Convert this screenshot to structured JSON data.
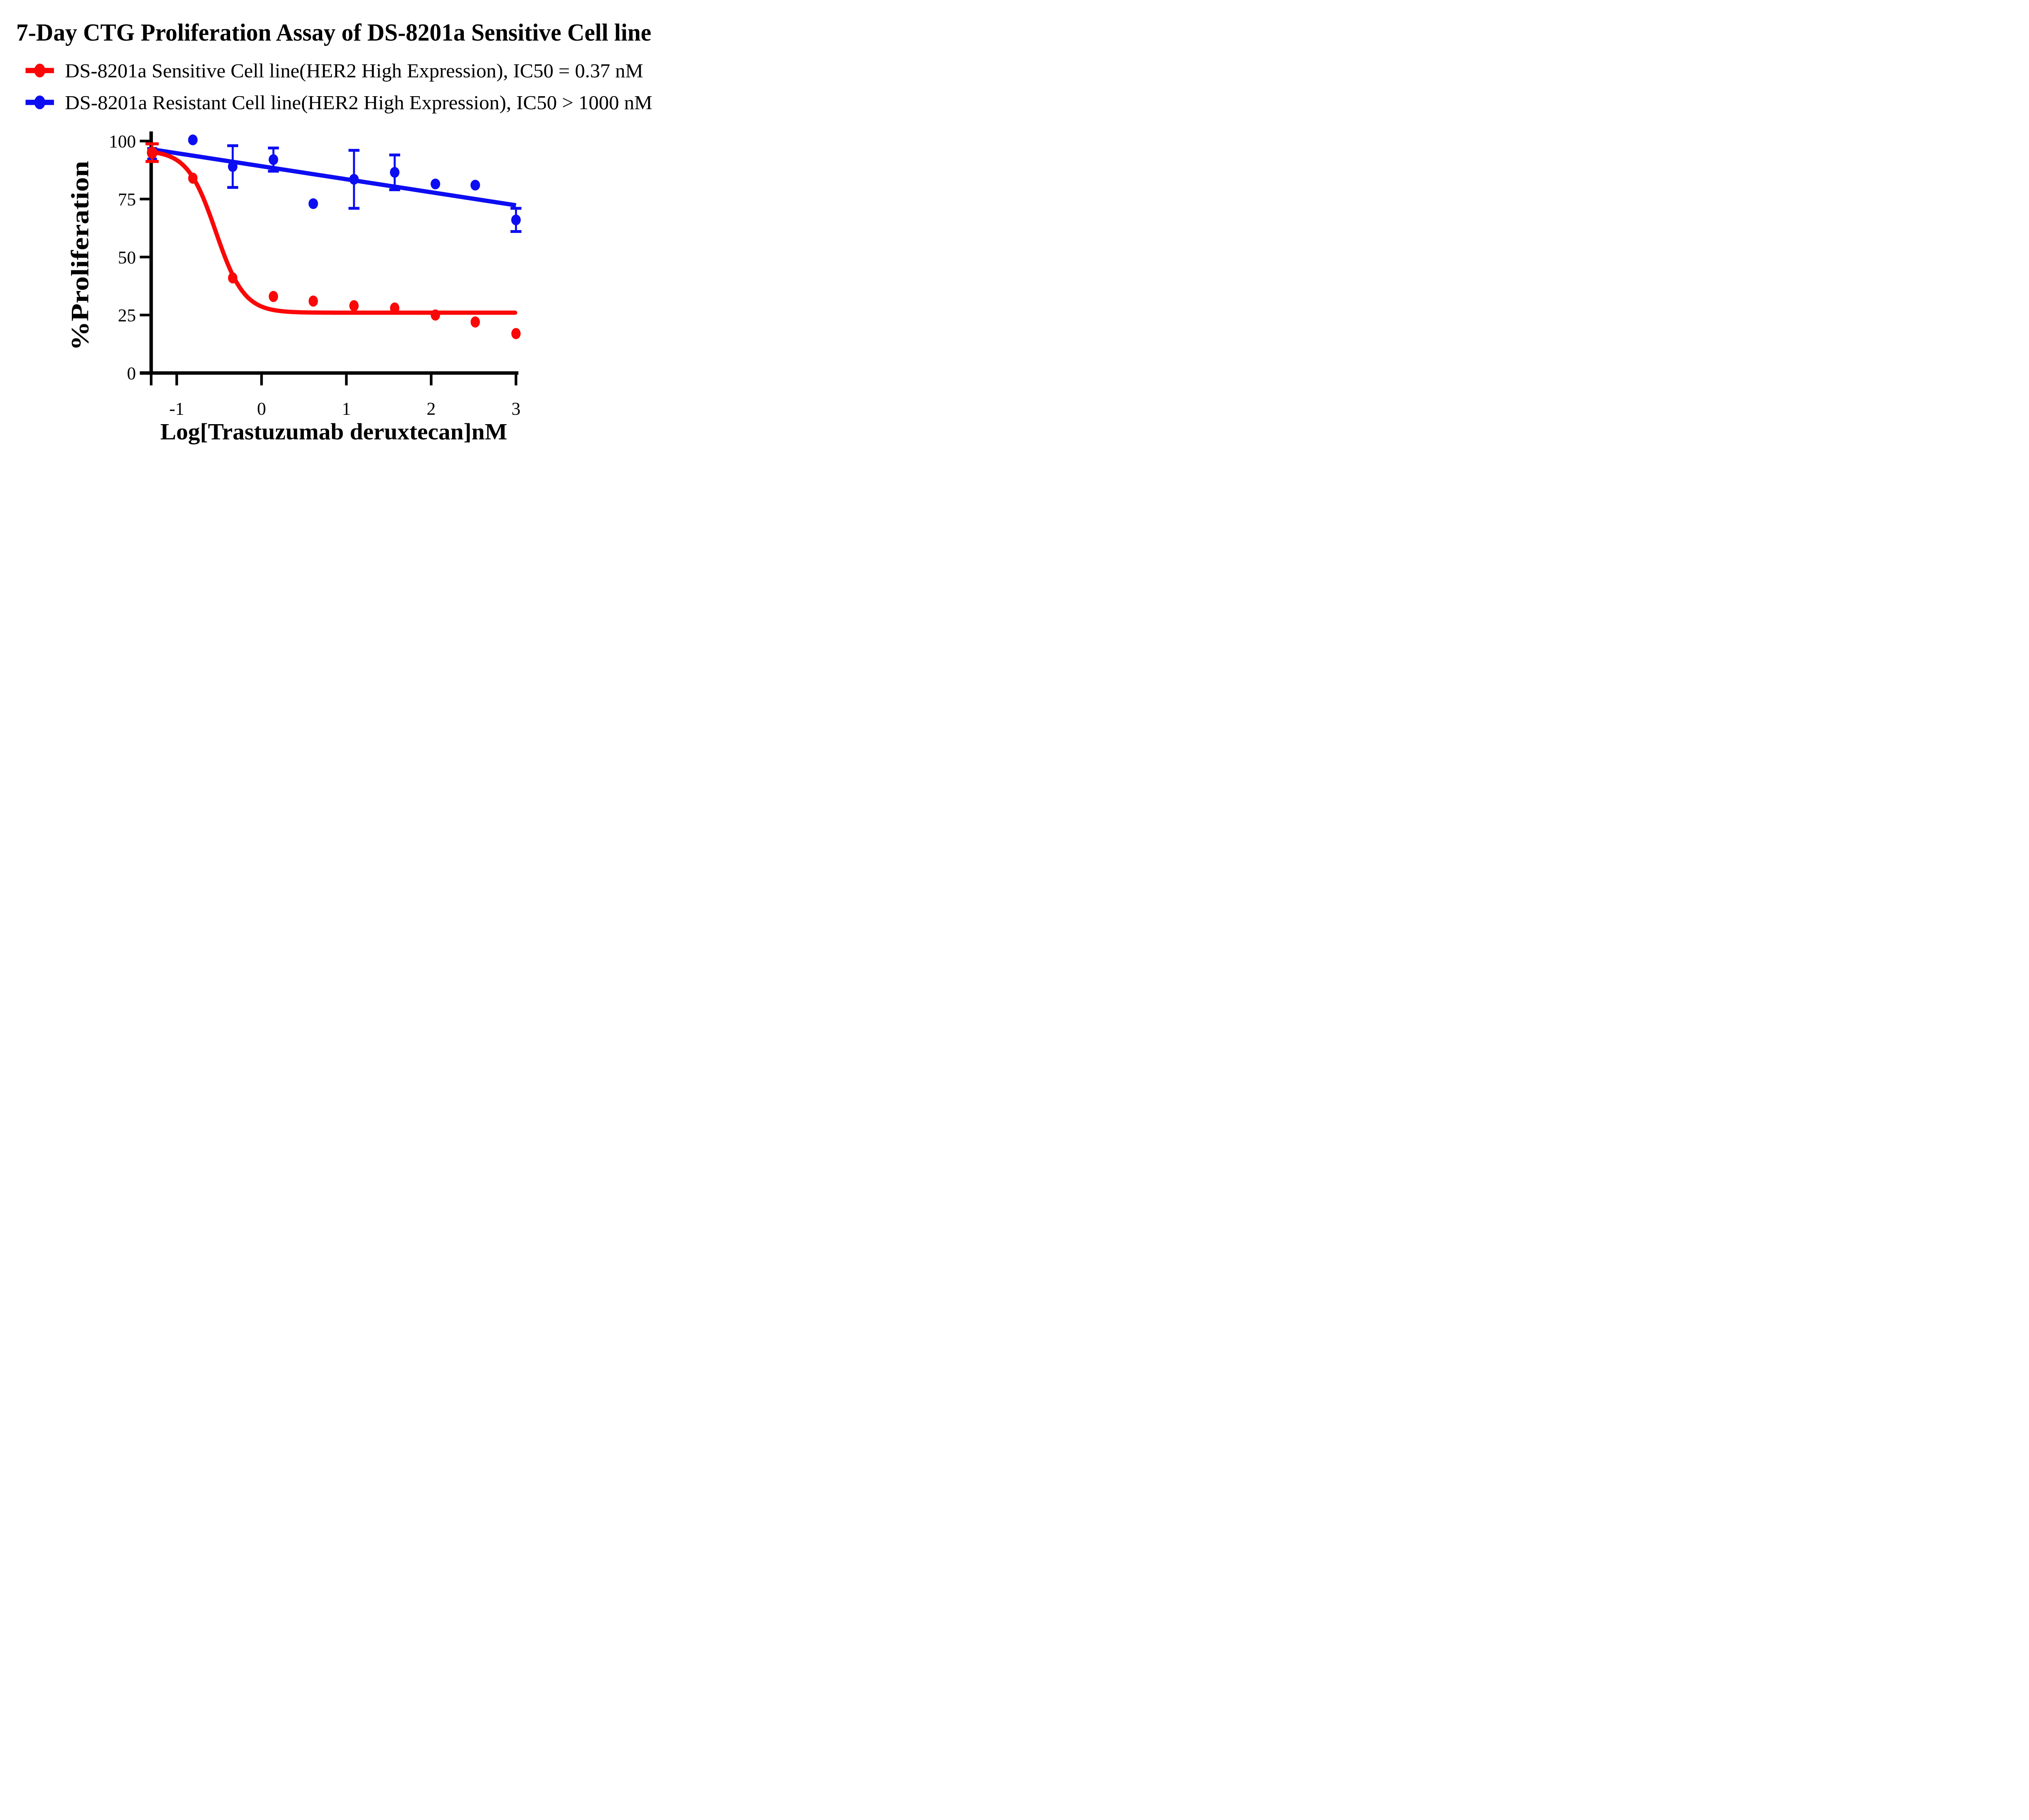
{
  "title": "7-Day CTG Proliferation Assay of DS-8201a Sensitive Cell line",
  "legend": [
    {
      "label": "DS-8201a Sensitive Cell line(HER2 High Expression), IC50 = 0.37 nM",
      "series": "sensitive",
      "color": "#FA0707",
      "ic50_text": "IC50 = 0.37 nM"
    },
    {
      "label": "DS-8201a Resistant Cell line(HER2 High Expression), IC50 > 1000 nM",
      "series": "resistant",
      "color": "#0D0DF2",
      "ic50_text": "IC50 > 1000 nM"
    }
  ],
  "chart_data": {
    "type": "scatter",
    "title": "7-Day CTG Proliferation Assay of DS-8201a Sensitive Cell line",
    "xlabel": "Log[Trastuzumab deruxtecan]nM",
    "ylabel": "%Proliferation",
    "xlim": [
      -1.3,
      3.03
    ],
    "ylim": [
      0,
      103
    ],
    "grid": false,
    "legend_position": "top-left",
    "x_ticks": [
      -1,
      0,
      1,
      2,
      3
    ],
    "x_tick_labels": [
      "-1",
      "0",
      "1",
      "2",
      "3"
    ],
    "y_ticks": [
      0,
      25,
      50,
      75,
      100
    ],
    "y_tick_labels": [
      "0",
      "25",
      "50",
      "75",
      "100"
    ],
    "series": [
      {
        "name": "DS-8201a Sensitive Cell line(HER2 High Expression)",
        "color": "#FA0707",
        "marker": "ellipse",
        "x": [
          -1.29,
          -0.81,
          -0.34,
          0.14,
          0.61,
          1.09,
          1.57,
          2.05,
          2.52,
          3.0
        ],
        "y": [
          95,
          84,
          41,
          33,
          31,
          29,
          28,
          25,
          22,
          17
        ],
        "y_err": [
          3.8,
          0,
          0,
          0,
          0,
          0,
          0,
          0,
          0,
          0
        ],
        "fit_4pl": {
          "top": 96,
          "bottom": 26,
          "logIC50": -0.54,
          "hill": 2.6
        },
        "ic50_nM": "0.37"
      },
      {
        "name": "DS-8201a Resistant Cell line(HER2 High Expression)",
        "color": "#0D0DF2",
        "marker": "ellipse",
        "x": [
          -1.29,
          -0.81,
          -0.34,
          0.14,
          0.61,
          1.09,
          1.57,
          2.05,
          2.52,
          3.0
        ],
        "y": [
          94.5,
          100.5,
          89,
          92,
          73,
          83.5,
          86.5,
          81.5,
          81,
          66
        ],
        "y_err": [
          2.3,
          0,
          9,
          5,
          0,
          12.5,
          7.5,
          0,
          0,
          5
        ],
        "fit_line": {
          "x1": -1.29,
          "y1": 96.4,
          "x2": 3.0,
          "y2": 72.3
        },
        "ic50_nM": "> 1000"
      }
    ]
  }
}
